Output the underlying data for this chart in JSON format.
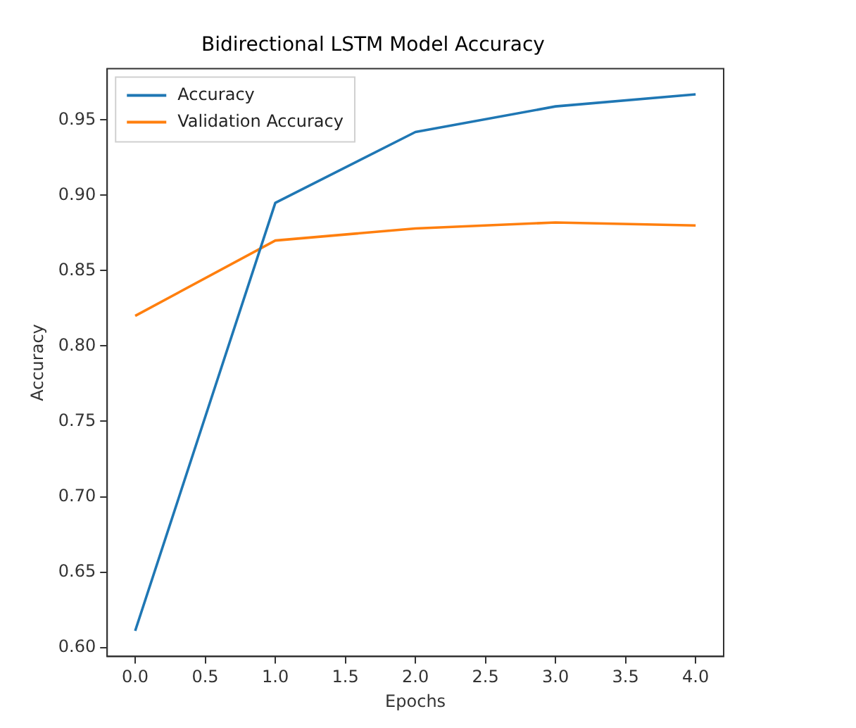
{
  "chart_data": {
    "type": "line",
    "title": "Bidirectional LSTM Model Accuracy",
    "xlabel": "Epochs",
    "ylabel": "Accuracy",
    "x": [
      0,
      1,
      2,
      3,
      4
    ],
    "series": [
      {
        "name": "Accuracy",
        "color": "#1f77b4",
        "values": [
          0.611,
          0.895,
          0.942,
          0.959,
          0.967
        ]
      },
      {
        "name": "Validation Accuracy",
        "color": "#ff7f0e",
        "values": [
          0.82,
          0.87,
          0.878,
          0.882,
          0.88
        ]
      }
    ],
    "xlim": [
      -0.2,
      4.2
    ],
    "xticks": [
      {
        "value": 0,
        "label": "0.0"
      },
      {
        "value": 0.5,
        "label": "0.5"
      },
      {
        "value": 1,
        "label": "1.0"
      },
      {
        "value": 1.5,
        "label": "1.5"
      },
      {
        "value": 2,
        "label": "2.0"
      },
      {
        "value": 2.5,
        "label": "2.5"
      },
      {
        "value": 3,
        "label": "3.0"
      },
      {
        "value": 3.5,
        "label": "3.5"
      },
      {
        "value": 4,
        "label": "4.0"
      }
    ],
    "ylim": [
      0.594,
      0.984
    ],
    "yticks": [
      {
        "value": 0.6,
        "label": "0.60"
      },
      {
        "value": 0.65,
        "label": "0.65"
      },
      {
        "value": 0.7,
        "label": "0.70"
      },
      {
        "value": 0.75,
        "label": "0.75"
      },
      {
        "value": 0.8,
        "label": "0.80"
      },
      {
        "value": 0.85,
        "label": "0.85"
      },
      {
        "value": 0.9,
        "label": "0.90"
      },
      {
        "value": 0.95,
        "label": "0.95"
      }
    ],
    "grid": false,
    "legend": "top left",
    "marker": "none",
    "line_style": "solid"
  }
}
